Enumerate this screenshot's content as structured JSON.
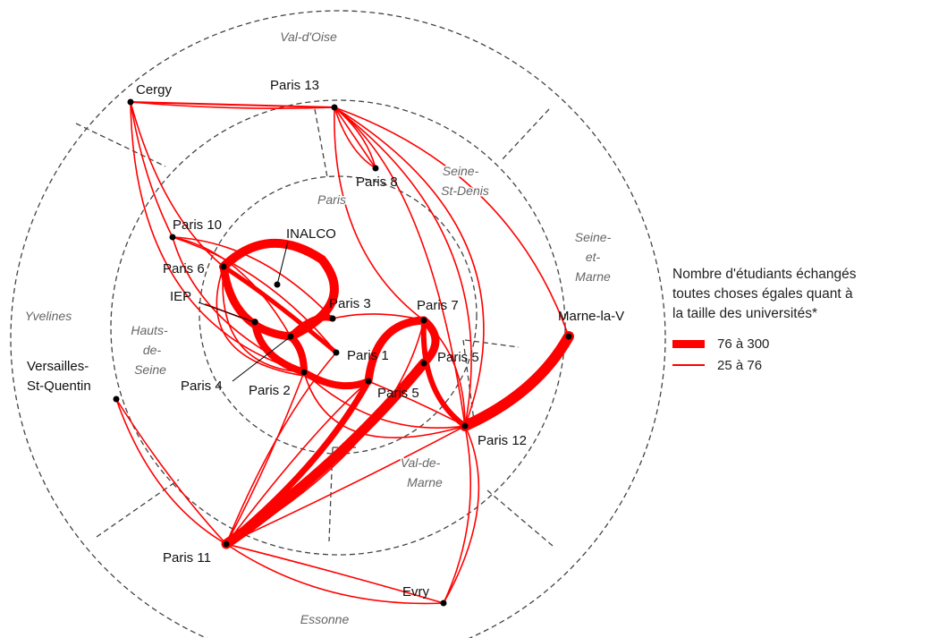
{
  "regions": {
    "paris": "Paris",
    "hauts_de_seine": [
      "Hauts-",
      "de-",
      "Seine"
    ],
    "seine_st_denis": [
      "Seine-",
      "St-Denis"
    ],
    "val_de_marne": [
      "Val-de-",
      "Marne"
    ],
    "val_d_oise": "Val-d'Oise",
    "yvelines": "Yvelines",
    "essonne": "Essonne",
    "seine_et_marne": [
      "Seine-",
      "et-",
      "Marne"
    ]
  },
  "nodes": {
    "cergy": "Cergy",
    "paris13": "Paris 13",
    "paris8": "Paris 8",
    "paris10": "Paris 10",
    "inalco": "INALCO",
    "paris6": "Paris 6",
    "iep": "IEP",
    "paris3": "Paris 3",
    "paris7": "Paris 7",
    "paris1": "Paris 1",
    "paris5_right": "Paris 5",
    "paris4": "Paris 4",
    "paris2": "Paris 2",
    "paris5": "Paris 5",
    "marne": "Marne-la-V",
    "paris12": "Paris 12",
    "versailles": [
      "Versailles-",
      "St-Quentin"
    ],
    "paris11": "Paris 11",
    "evry": "Evry"
  },
  "legend": {
    "title": [
      "Nombre d'étudiants échangés",
      "toutes choses égales quant à",
      "la taille des universités*"
    ],
    "items": [
      {
        "label": "76 à 300",
        "color": "#ff0000"
      },
      {
        "label": "25 à 76",
        "color": "#ff0000"
      }
    ]
  },
  "colors": {
    "flow": "#ff0000",
    "zone": "#444444"
  }
}
